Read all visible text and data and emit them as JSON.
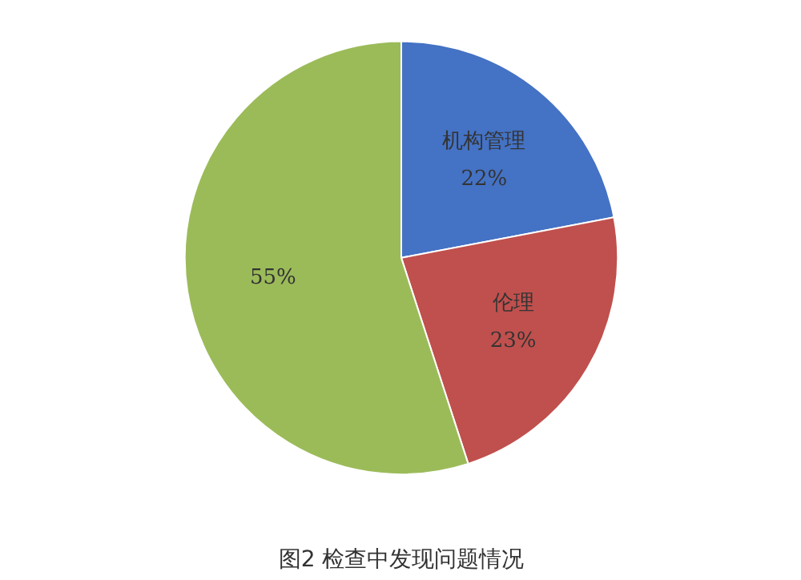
{
  "chart_data": {
    "type": "pie",
    "title": "图2 检查中发现问题情况",
    "categories": [
      "机构管理",
      "伦理",
      null
    ],
    "values": [
      22,
      23,
      55
    ],
    "colors": [
      "#4472c4",
      "#c0504d",
      "#9bbb59"
    ],
    "value_labels": [
      "22%",
      "23%",
      "55%"
    ]
  }
}
